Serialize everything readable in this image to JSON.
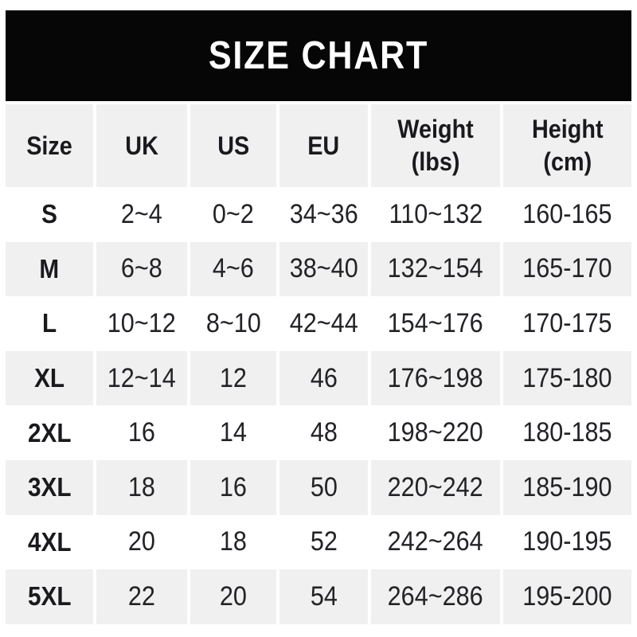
{
  "title": "SIZE CHART",
  "colors": {
    "banner_bg": "#060606",
    "banner_text": "#ffffff",
    "row_bg": "#ffffff",
    "row_alt_bg": "#f0f0f0",
    "text": "#232327",
    "header_text": "#1a1a1e"
  },
  "chart_data": {
    "type": "table",
    "title": "SIZE CHART",
    "columns": [
      {
        "label": "Size",
        "sublabel": ""
      },
      {
        "label": "UK",
        "sublabel": ""
      },
      {
        "label": "US",
        "sublabel": ""
      },
      {
        "label": "EU",
        "sublabel": ""
      },
      {
        "label": "Weight",
        "sublabel": "(lbs)"
      },
      {
        "label": "Height",
        "sublabel": "(cm)"
      }
    ],
    "rows": [
      [
        "S",
        "2~4",
        "0~2",
        "34~36",
        "110~132",
        "160-165"
      ],
      [
        "M",
        "6~8",
        "4~6",
        "38~40",
        "132~154",
        "165-170"
      ],
      [
        "L",
        "10~12",
        "8~10",
        "42~44",
        "154~176",
        "170-175"
      ],
      [
        "XL",
        "12~14",
        "12",
        "46",
        "176~198",
        "175-180"
      ],
      [
        "2XL",
        "16",
        "14",
        "48",
        "198~220",
        "180-185"
      ],
      [
        "3XL",
        "18",
        "16",
        "50",
        "220~242",
        "185-190"
      ],
      [
        "4XL",
        "20",
        "18",
        "52",
        "242~264",
        "190-195"
      ],
      [
        "5XL",
        "22",
        "20",
        "54",
        "264~286",
        "195-200"
      ]
    ]
  }
}
